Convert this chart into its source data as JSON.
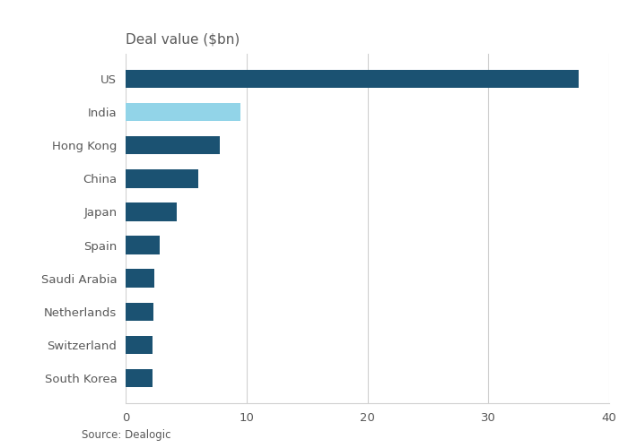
{
  "categories": [
    "South Korea",
    "Switzerland",
    "Netherlands",
    "Saudi Arabia",
    "Spain",
    "Japan",
    "China",
    "Hong Kong",
    "India",
    "US"
  ],
  "values": [
    2.2,
    2.2,
    2.3,
    2.4,
    2.8,
    4.2,
    6.0,
    7.8,
    9.5,
    37.5
  ],
  "bar_colors": [
    "#1b5272",
    "#1b5272",
    "#1b5272",
    "#1b5272",
    "#1b5272",
    "#1b5272",
    "#1b5272",
    "#1b5272",
    "#92d4e8",
    "#1b5272"
  ],
  "title": "Deal value ($bn)",
  "xlim": [
    0,
    40
  ],
  "xticks": [
    0,
    10,
    20,
    30,
    40
  ],
  "source": "Source: Dealogic",
  "background_color": "#ffffff",
  "grid_color": "#d0d0d0",
  "title_fontsize": 11,
  "label_fontsize": 9.5,
  "tick_fontsize": 9.5,
  "source_fontsize": 8.5,
  "text_color": "#595959"
}
